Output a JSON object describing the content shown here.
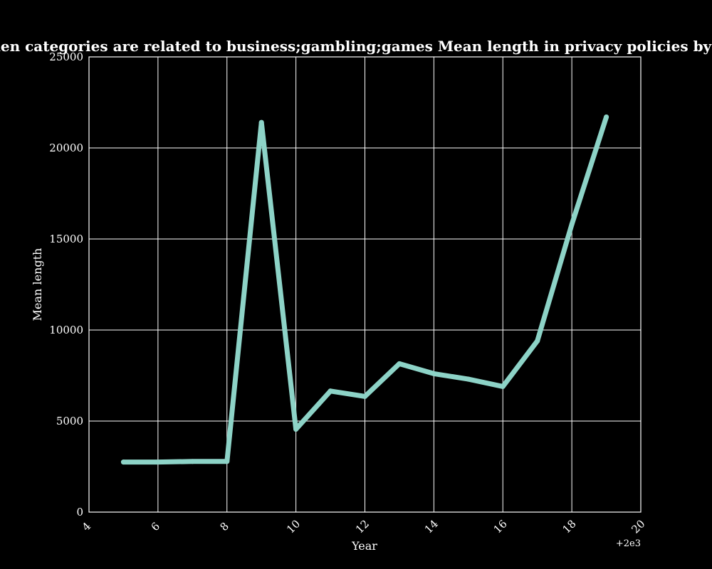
{
  "chart_data": {
    "type": "line",
    "title": "when categories are related to business;gambling;games Mean length in privacy policies by Year",
    "xlabel": "Year",
    "ylabel": "Mean length",
    "x_offset_label": "+2e3",
    "xlim": [
      4,
      20
    ],
    "ylim": [
      0,
      25000
    ],
    "xticks": [
      "4",
      "6",
      "8",
      "10",
      "12",
      "14",
      "16",
      "18",
      "20"
    ],
    "yticks": [
      "0",
      "5000",
      "10000",
      "15000",
      "20000",
      "25000"
    ],
    "grid": true,
    "line_color": "#8dd3c7",
    "series": [
      {
        "x": [
          5,
          6,
          7,
          8,
          9,
          10,
          11,
          12,
          13,
          14,
          15,
          16,
          17,
          18,
          19
        ],
        "values": [
          2750,
          2750,
          2780,
          2780,
          21400,
          4550,
          6650,
          6350,
          8150,
          7600,
          7300,
          6900,
          9400,
          15800,
          21700
        ]
      }
    ]
  }
}
